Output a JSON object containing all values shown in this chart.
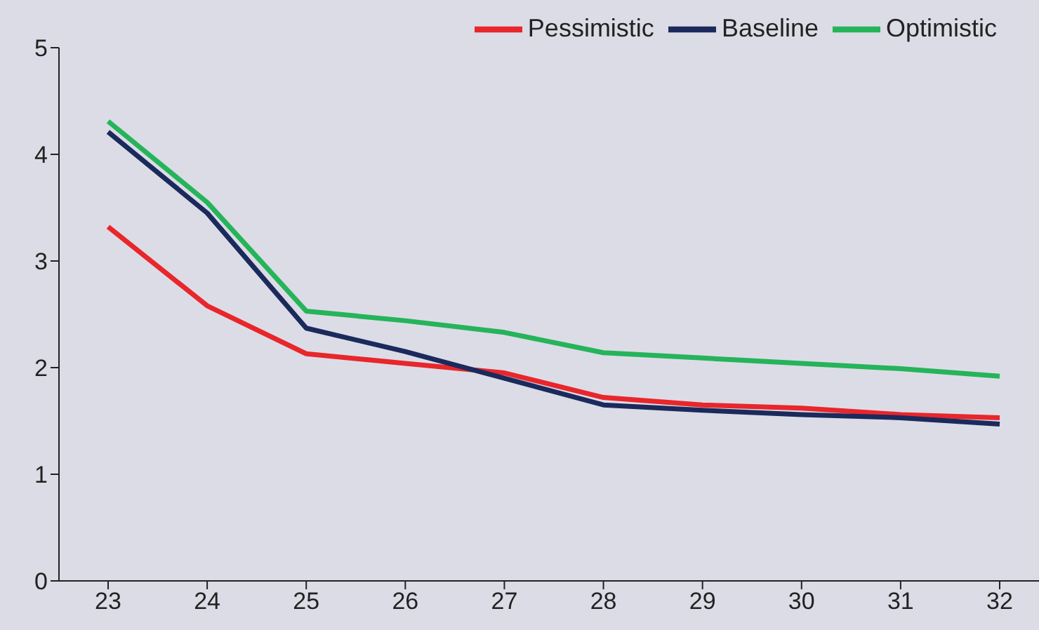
{
  "chart_data": {
    "type": "line",
    "categories": [
      "23",
      "24",
      "25",
      "26",
      "27",
      "28",
      "29",
      "30",
      "31",
      "32"
    ],
    "series": [
      {
        "name": "Pessimistic",
        "color": "#e8262b",
        "values": [
          3.32,
          2.58,
          2.13,
          2.04,
          1.95,
          1.72,
          1.65,
          1.62,
          1.56,
          1.53
        ]
      },
      {
        "name": "Baseline",
        "color": "#1b2a5c",
        "values": [
          4.21,
          3.45,
          2.37,
          2.15,
          1.9,
          1.65,
          1.6,
          1.56,
          1.53,
          1.47
        ]
      },
      {
        "name": "Optimistic",
        "color": "#25b45a",
        "values": [
          4.31,
          3.55,
          2.53,
          2.44,
          2.33,
          2.14,
          2.09,
          2.04,
          1.99,
          1.92
        ]
      }
    ],
    "ylim": [
      0,
      5
    ],
    "yticks": [
      0,
      1,
      2,
      3,
      4,
      5
    ],
    "grid": false,
    "legend": "top right",
    "marker": "none",
    "line_style": "solid"
  }
}
